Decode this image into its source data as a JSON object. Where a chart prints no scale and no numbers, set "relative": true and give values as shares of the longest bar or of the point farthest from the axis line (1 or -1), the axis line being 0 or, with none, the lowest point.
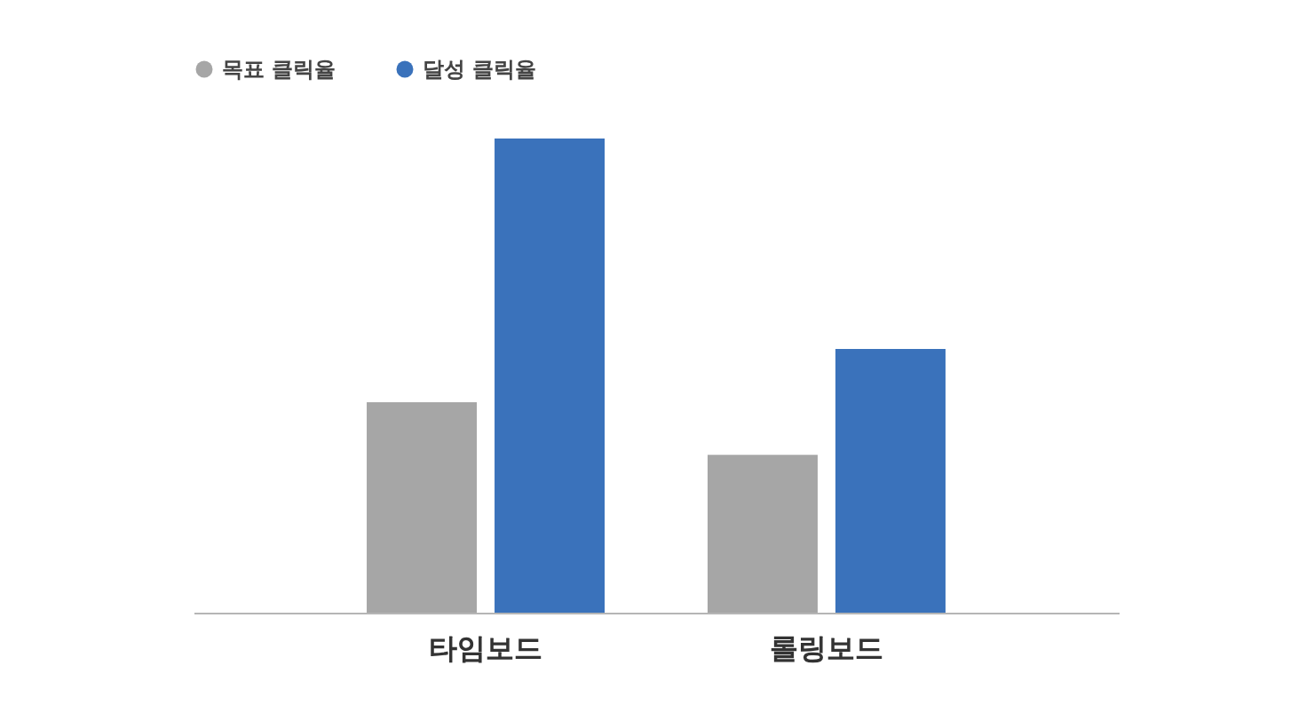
{
  "chart_data": {
    "type": "bar",
    "relative": true,
    "categories": [
      "타임보드",
      "롤링보드"
    ],
    "series": [
      {
        "name": "목표 클릭율",
        "color": "#a6a6a6",
        "values": [
          0.444,
          0.333
        ]
      },
      {
        "name": "달성 클릭율",
        "color": "#3a72bb",
        "values": [
          1,
          0.556
        ]
      }
    ],
    "legend": "top left"
  }
}
